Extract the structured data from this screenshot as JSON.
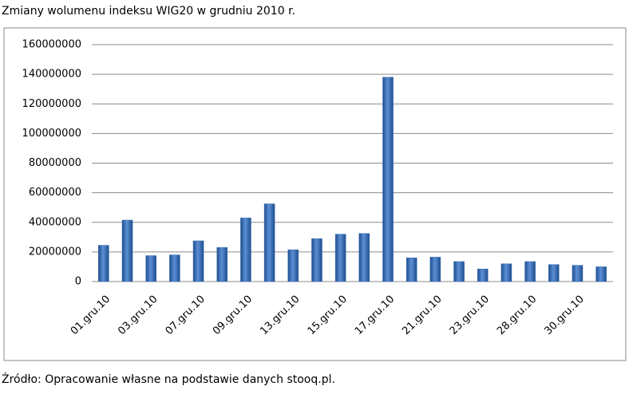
{
  "chart_data": {
    "type": "bar",
    "title": "Zmiany wolumenu indeksu WIG20 w grudniu 2010 r.",
    "source": "Źródło: Opracowanie własne na podstawie danych stooq.pl.",
    "categories": [
      "01.gru.10",
      null,
      "03.gru.10",
      null,
      "07.gru.10",
      null,
      "09.gru.10",
      null,
      "13.gru.10",
      null,
      "15.gru.10",
      null,
      "17.gru.10",
      null,
      "21.gru.10",
      null,
      "23.gru.10",
      null,
      "28.gru.10",
      null,
      "30.gru.10",
      null
    ],
    "values": [
      24500000,
      41500000,
      17500000,
      18000000,
      27500000,
      23000000,
      43000000,
      52500000,
      21500000,
      29000000,
      32000000,
      32500000,
      138000000,
      16000000,
      16500000,
      13500000,
      8500000,
      12000000,
      13500000,
      11500000,
      11000000,
      10000000
    ],
    "color": "#3a6db5",
    "ylim": [
      0,
      160000000
    ],
    "yticks": [
      0,
      20000000,
      40000000,
      60000000,
      80000000,
      100000000,
      120000000,
      140000000,
      160000000
    ],
    "grid": true
  }
}
